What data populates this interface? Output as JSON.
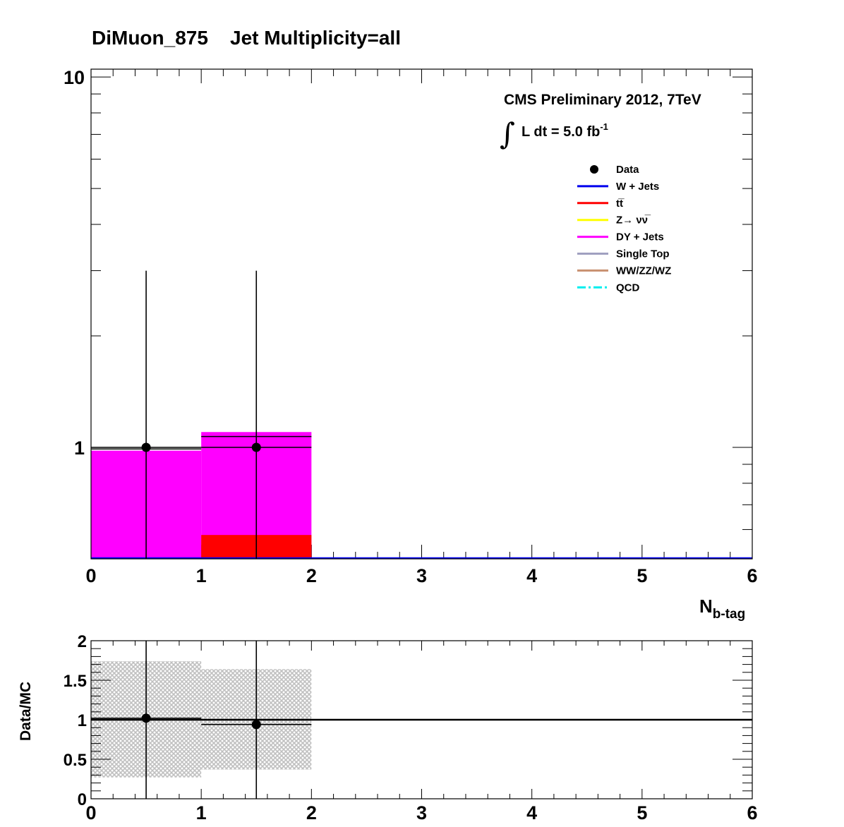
{
  "title": "DiMuon_875    Jet Multiplicity=all",
  "cms_label": "CMS Preliminary 2012, 7TeV",
  "lumi": {
    "integral_symbol": "∫",
    "text": "L dt = 5.0 fb",
    "exponent": "-1"
  },
  "colors": {
    "wjets": "#0000ee",
    "ttbar": "#ff0000",
    "znunu": "#ffff00",
    "dyjets": "#ff00ff",
    "singletop": "#a0a0c0",
    "diboson": "#c89070",
    "qcd": "#00eeee",
    "band": "#c8c8c8"
  },
  "legend": [
    {
      "label": "Data",
      "style": "marker",
      "color": "#000000"
    },
    {
      "label": "W + Jets",
      "style": "line",
      "color": "#0000ee"
    },
    {
      "label": "tt̅",
      "style": "line",
      "color": "#ff0000"
    },
    {
      "label": "Z→ νν̅",
      "style": "line",
      "color": "#ffff00"
    },
    {
      "label": "DY + Jets",
      "style": "line",
      "color": "#ff00ff"
    },
    {
      "label": "Single Top",
      "style": "line",
      "color": "#a0a0c0"
    },
    {
      "label": "WW/ZZ/WZ",
      "style": "line",
      "color": "#c89070"
    },
    {
      "label": "QCD",
      "style": "dashdot",
      "color": "#00eeee"
    }
  ],
  "chart_data": [
    {
      "type": "bar",
      "title": "DiMuon_875    Jet Multiplicity=all",
      "xlabel": "N",
      "xlabel_sub": "b-tag",
      "ylabel": "",
      "log_y": true,
      "xlim": [
        0,
        6
      ],
      "ylim": [
        0.5,
        10.5
      ],
      "x_ticks": [
        "0",
        "1",
        "2",
        "3",
        "4",
        "5",
        "6"
      ],
      "y_ticks": [
        "1",
        "10"
      ],
      "bins": [
        [
          0,
          1
        ],
        [
          1,
          2
        ],
        [
          2,
          3
        ],
        [
          3,
          4
        ],
        [
          4,
          5
        ],
        [
          5,
          6
        ]
      ],
      "stack": [
        {
          "name": "t̅t",
          "values": [
            0,
            0.58,
            0,
            0,
            0,
            0
          ]
        },
        {
          "name": "DY + Jets",
          "values": [
            0.98,
            1.1,
            0,
            0,
            0,
            0
          ]
        }
      ],
      "mc_total": [
        0.99,
        1.07,
        0,
        0,
        0,
        0
      ],
      "data": {
        "x": [
          0.5,
          1.5
        ],
        "y": [
          1,
          1
        ],
        "err_low": [
          1,
          1
        ],
        "err_high": [
          2.0,
          2.0
        ]
      },
      "legend_position": "top-right"
    },
    {
      "type": "scatter",
      "ylabel": "Data/MC",
      "xlim": [
        0,
        6
      ],
      "ylim": [
        0,
        2
      ],
      "x_ticks": [
        "0",
        "1",
        "2",
        "3",
        "4",
        "5",
        "6"
      ],
      "y_ticks": [
        "0",
        "0.5",
        "1",
        "1.5",
        "2"
      ],
      "ratio": {
        "x": [
          0.5,
          1.5
        ],
        "y": [
          1.02,
          0.94
        ],
        "err": [
          1.5,
          1.5
        ]
      },
      "band": [
        {
          "bin": [
            0,
            1
          ],
          "low": 0.27,
          "high": 1.74
        },
        {
          "bin": [
            1,
            2
          ],
          "low": 0.37,
          "high": 1.64
        }
      ],
      "reference_line": 1
    }
  ]
}
